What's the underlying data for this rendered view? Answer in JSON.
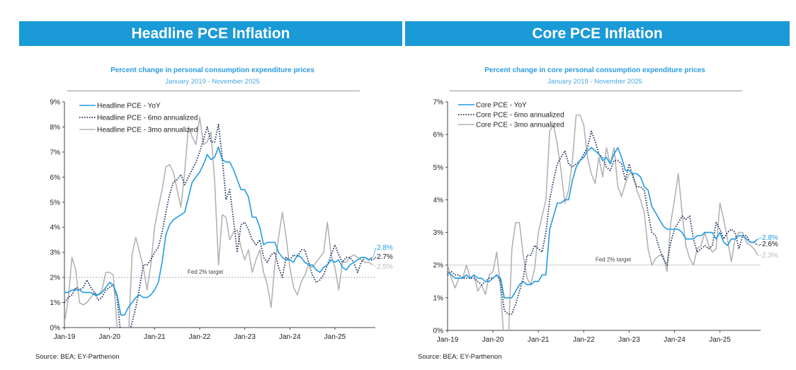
{
  "panels": [
    {
      "banner": "Headline PCE Inflation",
      "title": "Percent change in personal consumption expenditure prices",
      "subtitle": "January 2019 - November 2025",
      "source": "Source: BEA; EY-Parthenon"
    },
    {
      "banner": "Core PCE Inflation",
      "title": "Percent change in core personal consumption expenditure prices",
      "subtitle": "January 2019 - November 2025",
      "source": "Source: BEA; EY-Parthenon"
    }
  ],
  "colors": {
    "banner": "#1a9ad6",
    "yoy": "#1f9be3",
    "six": "#1c2b5a",
    "three": "#b3b3b3"
  },
  "chart_data": [
    {
      "type": "line",
      "title": "Percent change in personal consumption expenditure prices",
      "start": "2019-01",
      "frequency": "monthly",
      "ylim": [
        0,
        9
      ],
      "yticks": [
        "0%",
        "1%",
        "2%",
        "3%",
        "4%",
        "5%",
        "6%",
        "7%",
        "8%",
        "9%"
      ],
      "xticks": [
        "Jan-19",
        "Jan-20",
        "Jan-21",
        "Jan-22",
        "Jan-23",
        "Jan-24",
        "Jan-25"
      ],
      "reference": {
        "value": 2,
        "label": "Fed 2% target"
      },
      "series": [
        {
          "name": "Headline PCE - YoY",
          "style": "solid",
          "end_label": "2.8%",
          "values": [
            1.4,
            1.4,
            1.5,
            1.5,
            1.5,
            1.4,
            1.4,
            1.4,
            1.3,
            1.3,
            1.4,
            1.6,
            1.8,
            1.7,
            1.3,
            0.5,
            0.5,
            0.8,
            1.0,
            1.2,
            1.3,
            1.2,
            1.2,
            1.3,
            1.5,
            1.8,
            2.6,
            3.7,
            4.1,
            4.3,
            4.4,
            4.5,
            4.6,
            5.2,
            5.8,
            6.0,
            6.2,
            6.5,
            6.9,
            6.7,
            6.8,
            7.2,
            6.7,
            6.6,
            6.6,
            6.3,
            5.9,
            5.5,
            5.5,
            5.2,
            4.4,
            4.4,
            4.0,
            3.3,
            3.4,
            3.4,
            3.4,
            3.0,
            2.8,
            2.7,
            2.7,
            2.6,
            2.9,
            2.8,
            2.6,
            2.5,
            2.5,
            2.3,
            2.2,
            2.4,
            2.5,
            2.7,
            2.6,
            2.7,
            2.4,
            2.3,
            2.5,
            2.6,
            2.7,
            2.8,
            2.8,
            2.7,
            2.8
          ]
        },
        {
          "name": "Headline PCE - 6mo annualized",
          "style": "dotted",
          "end_label": "2.7%",
          "values": [
            1.0,
            1.2,
            1.3,
            1.6,
            1.5,
            1.6,
            1.9,
            1.6,
            1.4,
            1.1,
            1.2,
            1.5,
            1.6,
            1.7,
            1.2,
            -0.3,
            -0.5,
            -0.3,
            0.2,
            0.8,
            1.6,
            2.5,
            2.5,
            2.7,
            3.0,
            3.2,
            3.8,
            4.6,
            5.3,
            5.8,
            5.9,
            6.1,
            5.7,
            6.0,
            6.3,
            6.6,
            7.0,
            7.5,
            8.0,
            7.4,
            7.4,
            8.1,
            6.8,
            5.1,
            5.5,
            4.3,
            3.0,
            4.1,
            4.2,
            3.9,
            3.5,
            3.3,
            3.5,
            2.8,
            2.6,
            2.9,
            3.0,
            2.4,
            2.0,
            2.8,
            2.7,
            2.9,
            2.8,
            3.1,
            3.1,
            2.6,
            2.1,
            1.8,
            1.9,
            2.1,
            2.5,
            2.9,
            3.3,
            2.9,
            2.6,
            2.8,
            2.8,
            2.6,
            2.2,
            2.6,
            2.8,
            2.7,
            2.7
          ]
        },
        {
          "name": "Headline PCE - 3mo annualized",
          "style": "solid",
          "end_label": "2.5%",
          "values": [
            0.2,
            1.1,
            2.8,
            2.3,
            1.0,
            0.9,
            1.0,
            1.2,
            1.4,
            1.3,
            1.5,
            2.2,
            2.2,
            2.1,
            0.0,
            -2.0,
            -2.0,
            -0.5,
            2.9,
            3.6,
            3.0,
            2.4,
            1.5,
            2.5,
            4.0,
            4.8,
            5.5,
            6.4,
            6.5,
            6.2,
            5.5,
            4.8,
            6.2,
            8.0,
            7.6,
            7.3,
            8.4,
            7.3,
            7.4,
            7.8,
            5.8,
            2.5,
            4.5,
            4.4,
            3.5,
            3.8,
            3.9,
            3.2,
            2.7,
            3.1,
            2.2,
            2.7,
            3.1,
            2.2,
            1.7,
            0.8,
            2.5,
            3.6,
            4.6,
            3.6,
            2.4,
            1.6,
            1.3,
            1.8,
            2.1,
            2.5,
            2.4,
            2.6,
            2.8,
            3.0,
            4.2,
            2.9,
            2.4,
            1.5,
            2.6,
            2.6,
            2.8,
            2.9,
            2.8,
            2.7,
            2.6,
            2.6,
            2.5
          ]
        }
      ]
    },
    {
      "type": "line",
      "title": "Percent change in core personal consumption expenditure prices",
      "start": "2019-01",
      "frequency": "monthly",
      "ylim": [
        0,
        7
      ],
      "yticks": [
        "0%",
        "1%",
        "2%",
        "3%",
        "4%",
        "5%",
        "6%",
        "7%"
      ],
      "xticks": [
        "Jan-19",
        "Jan-20",
        "Jan-21",
        "Jan-22",
        "Jan-23",
        "Jan-24",
        "Jan-25"
      ],
      "reference": {
        "value": 2,
        "label": "Fed 2% target"
      },
      "series": [
        {
          "name": "Core PCE - YoY",
          "style": "solid",
          "end_label": "2.8%",
          "values": [
            1.8,
            1.7,
            1.6,
            1.6,
            1.6,
            1.7,
            1.6,
            1.7,
            1.6,
            1.6,
            1.5,
            1.5,
            1.6,
            1.7,
            1.6,
            1.0,
            1.0,
            1.0,
            1.2,
            1.4,
            1.5,
            1.4,
            1.4,
            1.5,
            1.5,
            1.7,
            1.7,
            3.1,
            3.5,
            3.9,
            3.9,
            4.0,
            4.0,
            4.6,
            5.0,
            5.2,
            5.3,
            5.5,
            5.6,
            5.5,
            5.4,
            5.2,
            5.3,
            5.1,
            5.4,
            5.6,
            5.3,
            4.9,
            4.9,
            4.8,
            4.8,
            4.7,
            4.4,
            4.3,
            3.8,
            3.6,
            3.4,
            3.2,
            3.1,
            3.1,
            3.1,
            3.1,
            3.0,
            2.8,
            2.8,
            2.8,
            2.9,
            2.9,
            3.0,
            3.0,
            3.0,
            2.8,
            3.0,
            2.7,
            2.6,
            2.8,
            2.8,
            2.9,
            2.9,
            2.8,
            2.7,
            2.7,
            2.8
          ]
        },
        {
          "name": "Core PCE - 6mo annualized",
          "style": "dotted",
          "end_label": "2.6%",
          "values": [
            1.7,
            1.8,
            1.7,
            1.7,
            1.6,
            1.6,
            1.6,
            1.6,
            1.5,
            1.4,
            1.5,
            1.6,
            1.6,
            1.7,
            1.5,
            0.6,
            0.5,
            0.5,
            0.8,
            1.2,
            1.6,
            2.3,
            2.3,
            2.6,
            2.5,
            2.4,
            3.0,
            4.0,
            4.6,
            5.1,
            5.3,
            5.5,
            5.1,
            5.0,
            5.1,
            5.2,
            5.4,
            5.6,
            6.1,
            5.8,
            5.4,
            5.3,
            5.0,
            4.9,
            5.2,
            5.2,
            5.1,
            4.6,
            5.1,
            4.7,
            4.4,
            4.4,
            4.3,
            3.6,
            3.0,
            2.9,
            2.5,
            2.2,
            2.0,
            2.7,
            3.1,
            3.3,
            3.5,
            3.4,
            3.5,
            2.8,
            2.4,
            2.5,
            2.6,
            2.5,
            2.6,
            3.3,
            3.1,
            2.8,
            3.0,
            3.1,
            3.0,
            2.5,
            2.9,
            2.9,
            2.7,
            2.7,
            2.6
          ]
        },
        {
          "name": "Core PCE - 3mo annualized",
          "style": "solid",
          "end_label": "2.3%",
          "values": [
            2.0,
            1.6,
            1.3,
            1.6,
            1.6,
            2.0,
            1.6,
            1.7,
            1.2,
            1.4,
            1.1,
            1.7,
            1.8,
            2.4,
            1.3,
            -0.5,
            -0.5,
            2.5,
            3.3,
            3.3,
            2.3,
            1.6,
            1.4,
            1.9,
            3.0,
            3.5,
            4.0,
            6.1,
            6.3,
            5.7,
            4.9,
            3.9,
            4.3,
            5.2,
            6.6,
            6.6,
            6.3,
            5.3,
            4.8,
            4.5,
            5.3,
            4.7,
            5.6,
            5.1,
            5.6,
            4.4,
            4.1,
            4.5,
            4.8,
            4.8,
            4.3,
            4.0,
            3.6,
            2.5,
            2.0,
            2.2,
            2.3,
            2.3,
            1.8,
            3.3,
            4.0,
            4.8,
            3.6,
            2.6,
            2.2,
            2.0,
            2.5,
            2.6,
            3.0,
            2.6,
            2.4,
            2.5,
            3.9,
            3.4,
            2.8,
            2.1,
            2.8,
            3.0,
            3.0,
            2.7,
            2.6,
            2.5,
            2.3
          ]
        }
      ]
    }
  ]
}
